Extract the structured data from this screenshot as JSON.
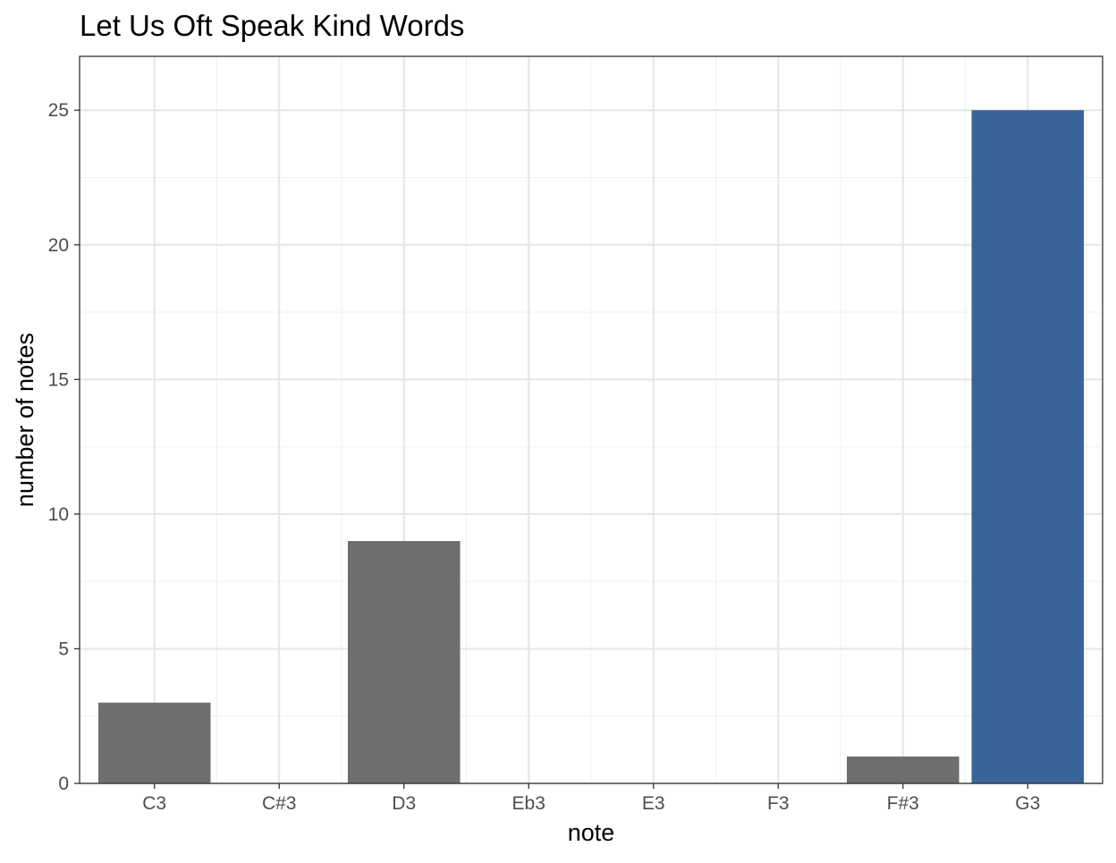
{
  "chart_data": {
    "type": "bar",
    "title": "Let Us Oft Speak Kind Words",
    "xlabel": "note",
    "ylabel": "number of notes",
    "categories": [
      "C3",
      "C#3",
      "D3",
      "Eb3",
      "E3",
      "F3",
      "F#3",
      "G3"
    ],
    "values": [
      3,
      0,
      9,
      0,
      0,
      0,
      1,
      25
    ],
    "bar_colors": [
      "#6e6e6e",
      "#6e6e6e",
      "#6e6e6e",
      "#6e6e6e",
      "#6e6e6e",
      "#6e6e6e",
      "#6e6e6e",
      "#386499"
    ],
    "ylim": [
      0,
      27
    ],
    "yticks": [
      0,
      5,
      10,
      15,
      20,
      25
    ],
    "grid": true,
    "legend": "none"
  }
}
